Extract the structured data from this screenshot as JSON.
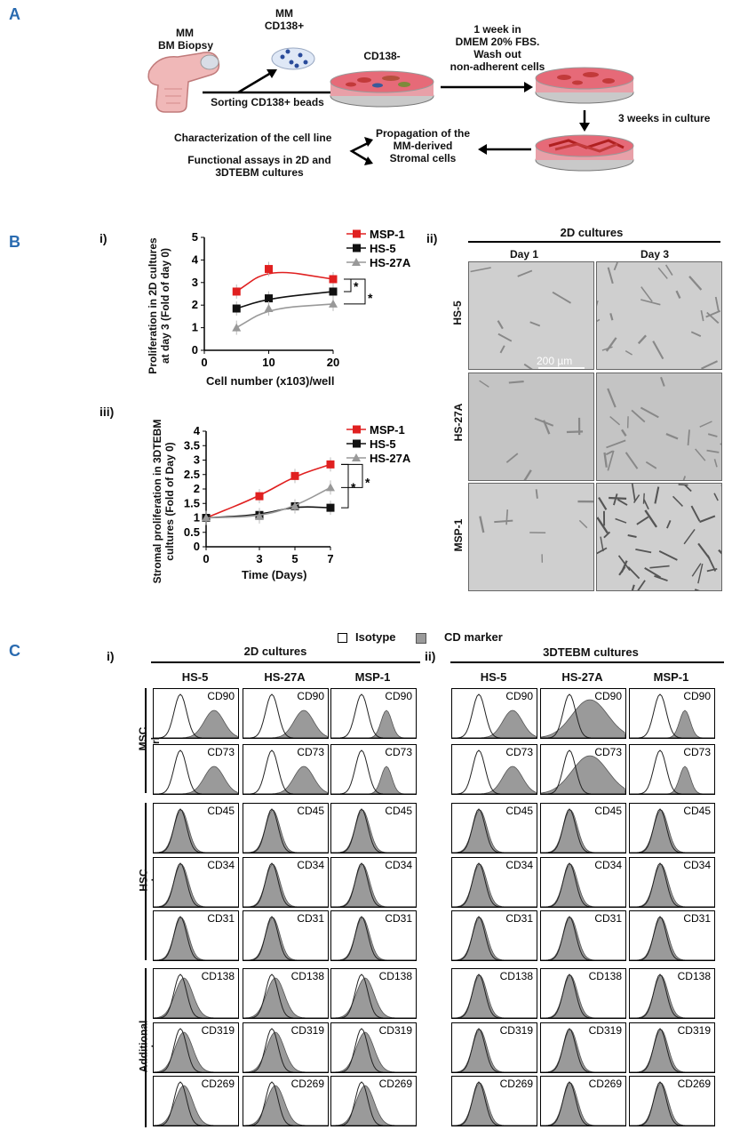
{
  "panels": {
    "a": "A",
    "b": "B",
    "c": "C"
  },
  "a": {
    "mm_biopsy": [
      "MM",
      "BM Biopsy"
    ],
    "mm_cd138": [
      "MM",
      "CD138+"
    ],
    "cd138neg": "CD138-",
    "sorting": "Sorting CD138+ beads",
    "week": [
      "1 week in",
      "DMEM 20% FBS.",
      "Wash out",
      "non-adherent cells"
    ],
    "three_weeks": "3 weeks in culture",
    "propagation": [
      "Propagation of the",
      "MM-derived",
      "Stromal cells"
    ],
    "characterization": "Characterization of the cell line",
    "functional": [
      "Functional assays in 2D and",
      "3DTEBM cultures"
    ]
  },
  "b": {
    "sub_i": "i)",
    "sub_ii": "ii)",
    "sub_iii": "iii)",
    "chart_i_ylabel": [
      "Proliferation in 2D cultures",
      "at day 3 (Fold of day 0)"
    ],
    "chart_i_xlabel": "Cell number (x103)/well",
    "chart_iii_ylabel": [
      "Stromal proliferation in 3DTEBM",
      "cultures (Fold of Day 0)"
    ],
    "chart_iii_xlabel": "Time (Days)",
    "star": "*",
    "micro_title": "2D cultures",
    "day1": "Day 1",
    "day3": "Day 3",
    "rows": [
      "HS-5",
      "HS-27A",
      "MSP-1"
    ],
    "scale_bar": "200 µm"
  },
  "chart_data": [
    {
      "type": "line",
      "x": [
        5,
        10,
        20
      ],
      "xlim": [
        0,
        20
      ],
      "xticks": [
        0,
        10,
        20
      ],
      "ylim": [
        0,
        5
      ],
      "yticks": [
        0,
        1,
        2,
        3,
        4,
        5
      ],
      "xlabel": "Cell number (x103)/well",
      "ylabel": "Proliferation in 2D cultures at day 3 (Fold of day 0)",
      "legend": "top-right",
      "series": [
        {
          "name": "MSP-1",
          "values": [
            2.6,
            3.6,
            3.15
          ],
          "color": "#e02020",
          "marker": "square"
        },
        {
          "name": "HS-5",
          "values": [
            1.85,
            2.3,
            2.6
          ],
          "color": "#111111",
          "marker": "square"
        },
        {
          "name": "HS-27A",
          "values": [
            1.0,
            1.85,
            2.05
          ],
          "color": "#999999",
          "marker": "triangle"
        }
      ]
    },
    {
      "type": "line",
      "x": [
        0,
        3,
        5,
        7
      ],
      "xlim": [
        0,
        7
      ],
      "xticks": [
        0,
        3,
        5,
        7
      ],
      "ylim": [
        0,
        4
      ],
      "yticks": [
        0,
        0.5,
        1,
        1.5,
        2,
        2.5,
        3,
        3.5,
        4
      ],
      "xlabel": "Time (Days)",
      "ylabel": "Stromal proliferation in 3DTEBM cultures (Fold of Day 0)",
      "legend": "top-right",
      "series": [
        {
          "name": "MSP-1",
          "values": [
            1.0,
            1.75,
            2.45,
            2.85
          ],
          "color": "#e02020",
          "marker": "square"
        },
        {
          "name": "HS-5",
          "values": [
            1.0,
            1.1,
            1.4,
            1.35
          ],
          "color": "#111111",
          "marker": "square"
        },
        {
          "name": "HS-27A",
          "values": [
            1.0,
            1.05,
            1.4,
            2.05
          ],
          "color": "#999999",
          "marker": "triangle"
        }
      ]
    }
  ],
  "c": {
    "legend_isotype": "Isotype",
    "legend_cd": "CD marker",
    "sub_i": "i)",
    "sub_ii": "ii)",
    "title_2d": "2D cultures",
    "title_3d": "3DTEBM cultures",
    "cols": [
      "HS-5",
      "HS-27A",
      "MSP-1"
    ],
    "groups": [
      {
        "label": [
          "MSC",
          "markers"
        ],
        "rows": [
          "CD90",
          "CD73"
        ]
      },
      {
        "label": [
          "HSC",
          "markers"
        ],
        "rows": [
          "CD45",
          "CD34",
          "CD31"
        ]
      },
      {
        "label": [
          "Additional",
          "markers"
        ],
        "rows": [
          "CD138",
          "CD319",
          "CD269"
        ]
      }
    ]
  }
}
